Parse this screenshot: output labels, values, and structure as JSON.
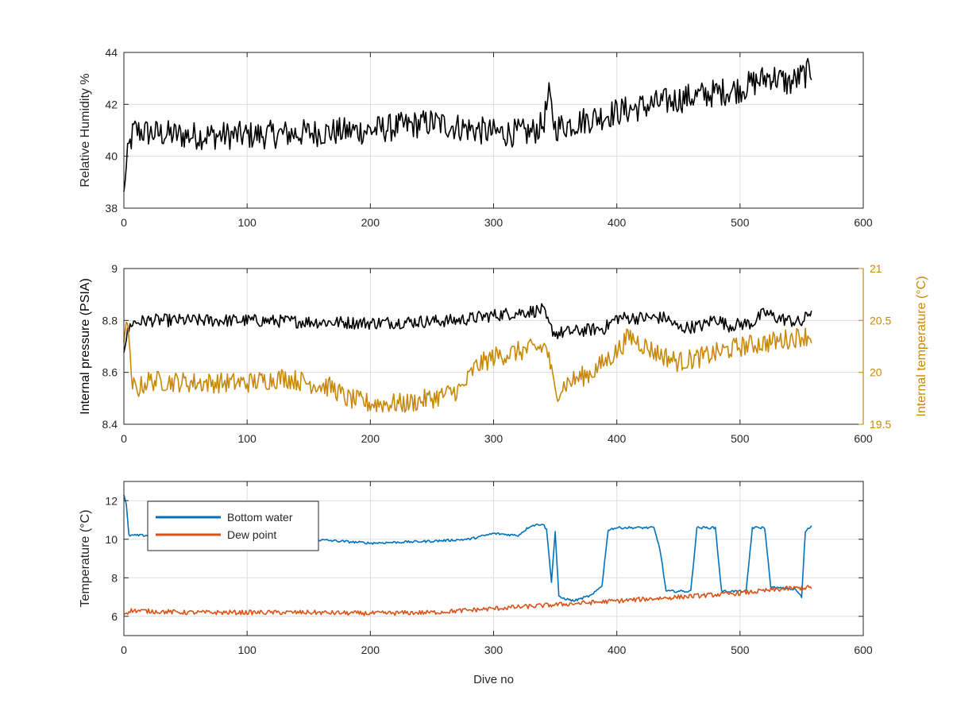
{
  "figure": {
    "background": "#ffffff"
  },
  "chart_data": [
    {
      "type": "line",
      "xlabel": "",
      "ylabel": "Relative Humidity %",
      "xlim": [
        0,
        600
      ],
      "ylim": [
        38,
        44
      ],
      "xticks": [
        0,
        100,
        200,
        300,
        400,
        500,
        600
      ],
      "yticks": [
        38,
        40,
        42,
        44
      ],
      "grid": true,
      "series": [
        {
          "color": "#000000",
          "anchors": [
            [
              0,
              38.6
            ],
            [
              2,
              39.6
            ],
            [
              4,
              40.3
            ],
            [
              8,
              41.0
            ],
            [
              20,
              40.9
            ],
            [
              50,
              40.8
            ],
            [
              100,
              40.8
            ],
            [
              150,
              40.9
            ],
            [
              200,
              41.0
            ],
            [
              250,
              41.3
            ],
            [
              300,
              40.9
            ],
            [
              330,
              40.9
            ],
            [
              340,
              41.2
            ],
            [
              345,
              42.3
            ],
            [
              350,
              41.1
            ],
            [
              400,
              41.7
            ],
            [
              450,
              42.2
            ],
            [
              500,
              42.6
            ],
            [
              525,
              43.1
            ],
            [
              540,
              42.8
            ],
            [
              558,
              43.3
            ]
          ],
          "noise": 0.55
        }
      ]
    },
    {
      "type": "line",
      "xlabel": "",
      "ylabel": "Internal pressure (PSIA)",
      "ylabel_right": "Internal temperature (°C)",
      "xlim": [
        0,
        600
      ],
      "ylim": [
        8.4,
        9
      ],
      "ylim_right": [
        19.5,
        21
      ],
      "xticks": [
        0,
        100,
        200,
        300,
        400,
        500,
        600
      ],
      "yticks": [
        8.4,
        8.6,
        8.8,
        9
      ],
      "yticks_right": [
        19.5,
        20,
        20.5,
        21
      ],
      "right_axis_color": "#c8890a",
      "grid": true,
      "series": [
        {
          "axis": "left",
          "color": "#000000",
          "anchors": [
            [
              0,
              8.68
            ],
            [
              3,
              8.75
            ],
            [
              6,
              8.79
            ],
            [
              20,
              8.8
            ],
            [
              100,
              8.8
            ],
            [
              200,
              8.79
            ],
            [
              270,
              8.8
            ],
            [
              300,
              8.82
            ],
            [
              340,
              8.84
            ],
            [
              345,
              8.78
            ],
            [
              350,
              8.75
            ],
            [
              390,
              8.77
            ],
            [
              400,
              8.81
            ],
            [
              440,
              8.81
            ],
            [
              450,
              8.77
            ],
            [
              470,
              8.78
            ],
            [
              480,
              8.81
            ],
            [
              490,
              8.78
            ],
            [
              510,
              8.79
            ],
            [
              520,
              8.83
            ],
            [
              530,
              8.81
            ],
            [
              540,
              8.8
            ],
            [
              550,
              8.79
            ],
            [
              558,
              8.84
            ]
          ],
          "noise": 0.025
        },
        {
          "axis": "right",
          "color": "#c8890a",
          "anchors": [
            [
              0,
              20.3
            ],
            [
              3,
              20.55
            ],
            [
              6,
              19.9
            ],
            [
              10,
              19.83
            ],
            [
              20,
              19.92
            ],
            [
              60,
              19.9
            ],
            [
              100,
              19.9
            ],
            [
              130,
              19.95
            ],
            [
              170,
              19.85
            ],
            [
              180,
              19.75
            ],
            [
              200,
              19.7
            ],
            [
              230,
              19.7
            ],
            [
              260,
              19.78
            ],
            [
              275,
              19.85
            ],
            [
              285,
              20.05
            ],
            [
              300,
              20.15
            ],
            [
              320,
              20.2
            ],
            [
              343,
              20.25
            ],
            [
              350,
              19.8
            ],
            [
              360,
              19.9
            ],
            [
              380,
              20.0
            ],
            [
              400,
              20.2
            ],
            [
              410,
              20.35
            ],
            [
              430,
              20.2
            ],
            [
              450,
              20.1
            ],
            [
              470,
              20.15
            ],
            [
              500,
              20.25
            ],
            [
              530,
              20.3
            ],
            [
              550,
              20.35
            ],
            [
              558,
              20.35
            ]
          ],
          "noise": 0.1
        }
      ]
    },
    {
      "type": "line",
      "xlabel": "Dive no",
      "ylabel": "Temperature (°C)",
      "xlim": [
        0,
        600
      ],
      "ylim": [
        5,
        13
      ],
      "xticks": [
        0,
        100,
        200,
        300,
        400,
        500,
        600
      ],
      "yticks": [
        6,
        8,
        10,
        12
      ],
      "grid": true,
      "legend": {
        "placement": "top-left",
        "entries": [
          "Bottom water",
          "Dew point"
        ]
      },
      "series": [
        {
          "name": "Bottom water",
          "color": "#0072bd",
          "anchors": [
            [
              0,
              12.3
            ],
            [
              2,
              11.8
            ],
            [
              4,
              10.2
            ],
            [
              20,
              10.2
            ],
            [
              60,
              10.1
            ],
            [
              100,
              10.1
            ],
            [
              150,
              10.0
            ],
            [
              200,
              9.8
            ],
            [
              250,
              9.9
            ],
            [
              280,
              10.0
            ],
            [
              300,
              10.3
            ],
            [
              320,
              10.2
            ],
            [
              330,
              10.7
            ],
            [
              340,
              10.8
            ],
            [
              343,
              10.5
            ],
            [
              347,
              7.8
            ],
            [
              350,
              10.4
            ],
            [
              353,
              7.0
            ],
            [
              365,
              6.8
            ],
            [
              380,
              7.1
            ],
            [
              388,
              7.6
            ],
            [
              393,
              10.5
            ],
            [
              400,
              10.6
            ],
            [
              430,
              10.6
            ],
            [
              435,
              9.5
            ],
            [
              440,
              7.3
            ],
            [
              460,
              7.3
            ],
            [
              465,
              10.6
            ],
            [
              480,
              10.6
            ],
            [
              485,
              7.3
            ],
            [
              505,
              7.3
            ],
            [
              510,
              10.6
            ],
            [
              520,
              10.6
            ],
            [
              525,
              7.5
            ],
            [
              545,
              7.4
            ],
            [
              550,
              7.0
            ],
            [
              553,
              10.4
            ],
            [
              558,
              10.7
            ]
          ],
          "noise": 0.06
        },
        {
          "name": "Dew point",
          "color": "#d95319",
          "anchors": [
            [
              0,
              6.1
            ],
            [
              5,
              6.3
            ],
            [
              50,
              6.2
            ],
            [
              100,
              6.2
            ],
            [
              150,
              6.2
            ],
            [
              200,
              6.15
            ],
            [
              250,
              6.2
            ],
            [
              300,
              6.4
            ],
            [
              350,
              6.6
            ],
            [
              400,
              6.8
            ],
            [
              450,
              7.0
            ],
            [
              500,
              7.2
            ],
            [
              540,
              7.45
            ],
            [
              558,
              7.5
            ]
          ],
          "noise": 0.12
        }
      ]
    }
  ]
}
